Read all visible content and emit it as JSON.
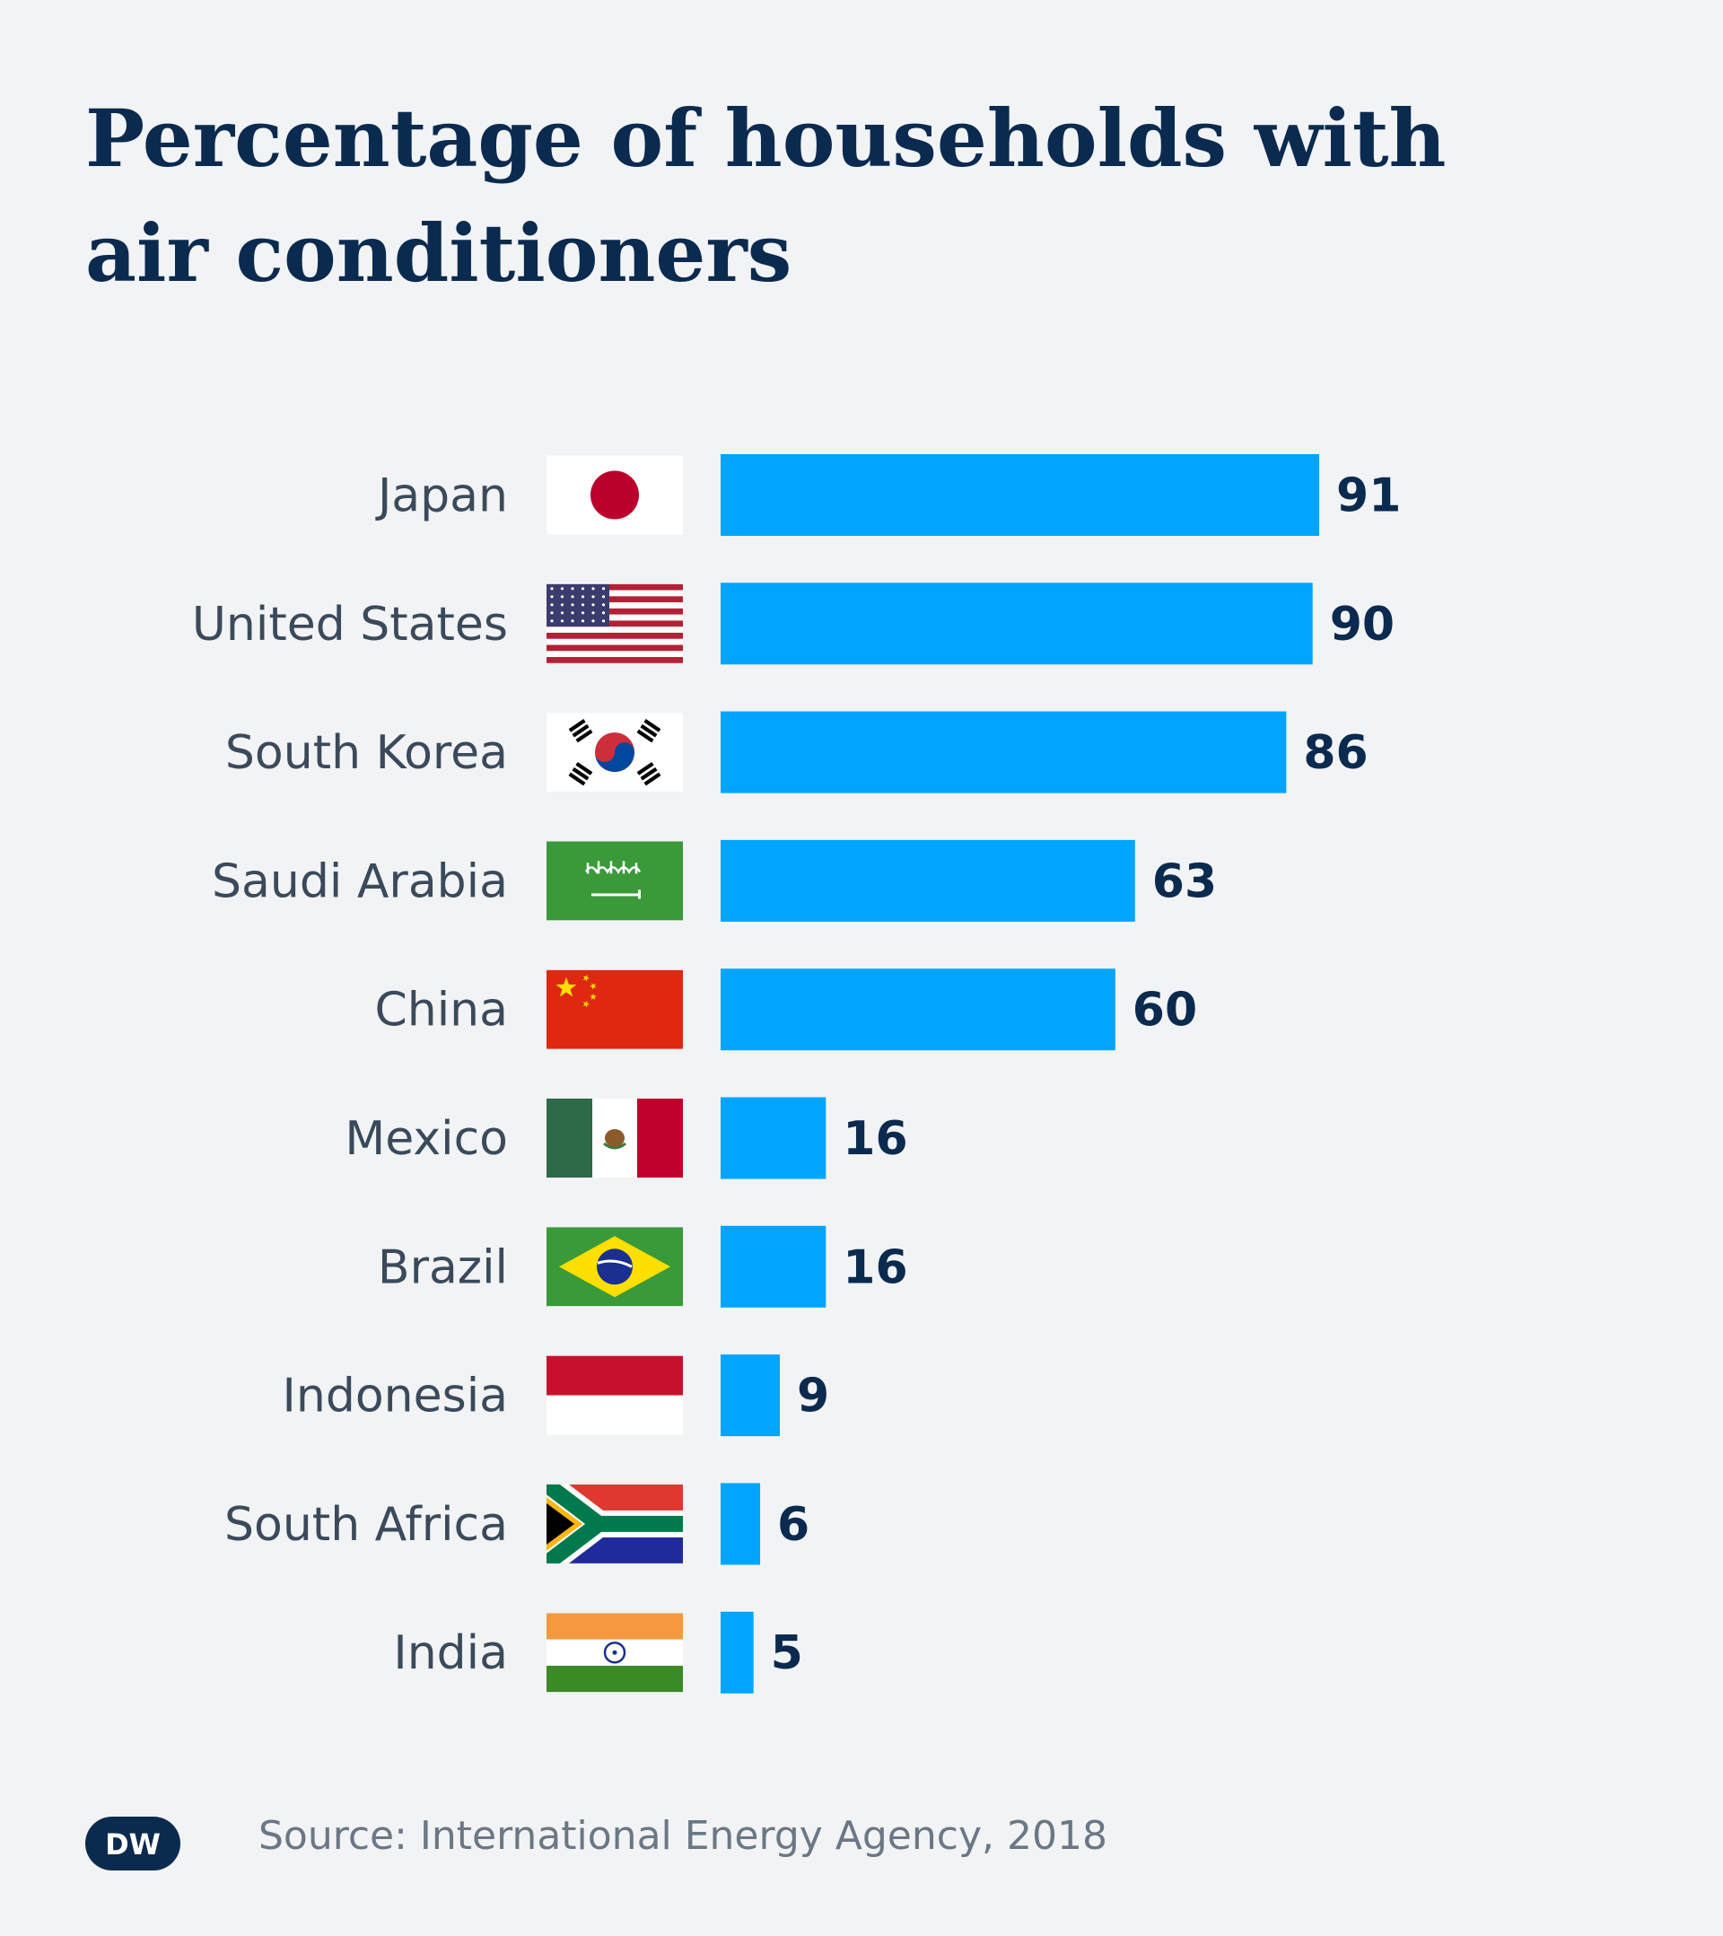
{
  "chart_data": {
    "type": "bar",
    "orientation": "horizontal",
    "title": "Percentage of households with air conditioners",
    "categories": [
      "Japan",
      "United States",
      "South Korea",
      "Saudi Arabia",
      "China",
      "Mexico",
      "Brazil",
      "Indonesia",
      "South Africa",
      "India"
    ],
    "values": [
      91,
      90,
      86,
      63,
      60,
      16,
      16,
      9,
      6,
      5
    ],
    "flags": [
      "flag-japan",
      "flag-united-states",
      "flag-south-korea",
      "flag-saudi-arabia",
      "flag-china",
      "flag-mexico",
      "flag-brazil",
      "flag-indonesia",
      "flag-south-africa",
      "flag-india"
    ],
    "xlim": [
      0,
      100
    ],
    "grid": false,
    "bar_color": "#00a5ff",
    "value_color": "#0b2a4f"
  },
  "source": "Source: International Energy Agency, 2018",
  "logo": {
    "text": "DW",
    "color": "#0b2a4f"
  }
}
